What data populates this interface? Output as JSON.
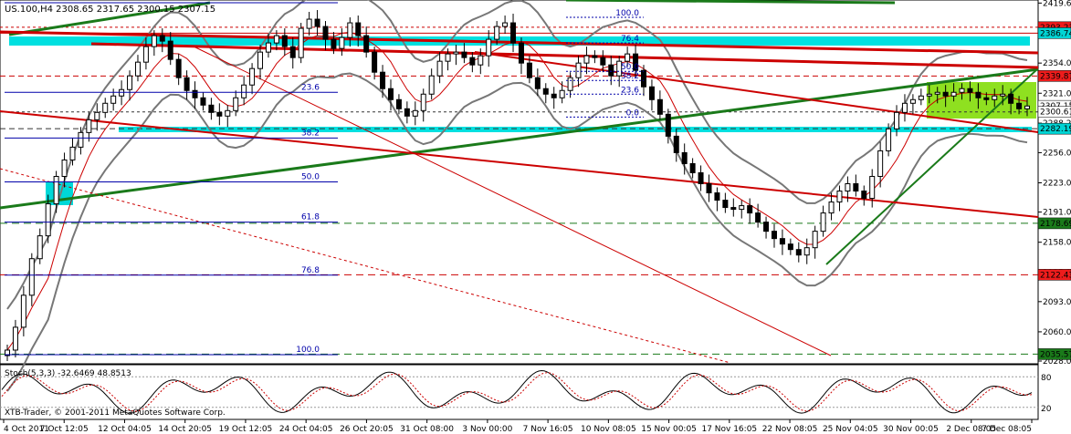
{
  "app": {
    "header": "US.100,H4  2308.65 2317.65 2300.15 2307.15",
    "stoch_header": "Stoch(5,3,3) -32.6469 48.8513",
    "copyright": "XTB-Trader, © 2001-2011 MetaQuotes Software Corp."
  },
  "chart_data": {
    "type": "candlestick",
    "symbol": "US.100",
    "timeframe": "H4",
    "ohlc_last": {
      "open": 2308.65,
      "high": 2317.65,
      "low": 2300.15,
      "close": 2307.15
    },
    "price_axis_ticks": [
      "2419.65",
      "2386.75",
      "2354.00",
      "2321.00",
      "2288.25",
      "2256.00",
      "2223.00",
      "2191.00",
      "2158.00",
      "2125.25",
      "2093.00",
      "2060.00",
      "2028.00"
    ],
    "time_axis_labels": [
      "4 Oct 2011",
      "7 Oct 12:05",
      "12 Oct 04:05",
      "14 Oct 20:05",
      "19 Oct 12:05",
      "24 Oct 04:05",
      "26 Oct 20:05",
      "31 Oct 08:00",
      "3 Nov 00:00",
      "7 Nov 16:05",
      "10 Nov 08:05",
      "15 Nov 00:05",
      "17 Nov 16:05",
      "22 Nov 08:05",
      "25 Nov 04:05",
      "30 Nov 00:05",
      "2 Dec 08:05",
      "7 Dec 08:05"
    ],
    "price_markers": [
      {
        "price": "2393.23",
        "bg": "#ee1c1c"
      },
      {
        "price": "2386.74",
        "bg": "#00d4d4"
      },
      {
        "price": "2339.87",
        "bg": "#ee1c1c"
      },
      {
        "price": "2307.15",
        "bg": "#ffffff"
      },
      {
        "price": "2300.61",
        "bg": "#ffffff"
      },
      {
        "price": "2282.19",
        "bg": "#00d4d4"
      },
      {
        "price": "2178.69",
        "bg": "#1a7a1a"
      },
      {
        "price": "2122.43",
        "bg": "#ee1c1c"
      },
      {
        "price": "2035.57",
        "bg": "#1a7a1a"
      }
    ],
    "fib_left": [
      {
        "label": "0.0",
        "price": 2420
      },
      {
        "label": "23.6",
        "price": 2322
      },
      {
        "label": "38.2",
        "price": 2272
      },
      {
        "label": "50.0",
        "price": 2224
      },
      {
        "label": "61.8",
        "price": 2180
      },
      {
        "label": "76.8",
        "price": 2122
      },
      {
        "label": "100.0",
        "price": 2035
      }
    ],
    "fib_right": [
      {
        "label": "100.0",
        "price": 2404
      },
      {
        "label": "76.4",
        "price": 2376
      },
      {
        "label": "50.0",
        "price": 2345
      },
      {
        "label": "38.2",
        "price": 2335
      },
      {
        "label": "23.6",
        "price": 2320
      },
      {
        "label": "0.0",
        "price": 2295
      }
    ],
    "stoch_levels": [
      "80",
      "20"
    ],
    "close_series": [
      2040,
      2065,
      2100,
      2140,
      2165,
      2200,
      2230,
      2248,
      2262,
      2278,
      2292,
      2300,
      2310,
      2318,
      2325,
      2340,
      2355,
      2372,
      2384,
      2378,
      2358,
      2338,
      2324,
      2316,
      2308,
      2300,
      2296,
      2302,
      2316,
      2330,
      2348,
      2366,
      2376,
      2384,
      2372,
      2360,
      2392,
      2402,
      2394,
      2380,
      2370,
      2382,
      2398,
      2384,
      2366,
      2344,
      2326,
      2314,
      2304,
      2296,
      2302,
      2320,
      2340,
      2356,
      2364,
      2366,
      2360,
      2352,
      2362,
      2380,
      2394,
      2398,
      2376,
      2354,
      2338,
      2326,
      2320,
      2316,
      2324,
      2338,
      2354,
      2362,
      2360,
      2352,
      2340,
      2356,
      2364,
      2346,
      2328,
      2314,
      2298,
      2274,
      2256,
      2244,
      2234,
      2222,
      2212,
      2204,
      2196,
      2194,
      2198,
      2190,
      2180,
      2170,
      2162,
      2156,
      2150,
      2144,
      2152,
      2170,
      2190,
      2202,
      2214,
      2222,
      2214,
      2206,
      2230,
      2258,
      2282,
      2300,
      2310,
      2314,
      2318,
      2320,
      2322,
      2318,
      2322,
      2326,
      2322,
      2316,
      2314,
      2318,
      2320,
      2310,
      2304,
      2307
    ],
    "ylim": [
      2028,
      2420
    ]
  }
}
